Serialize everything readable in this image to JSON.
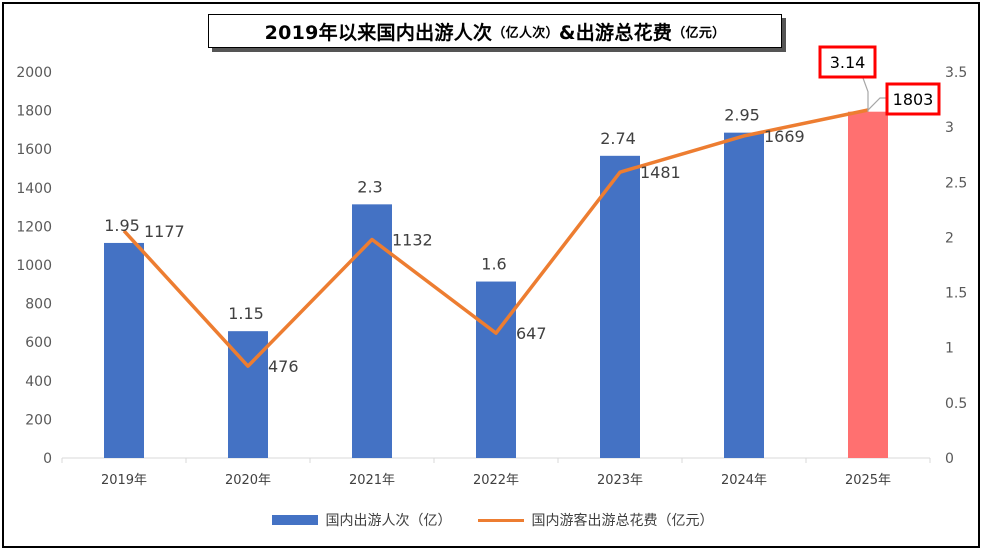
{
  "title": {
    "main": "2019年以来国内出游人次",
    "unit1": "（亿人次）",
    "mid": "&出游总花费",
    "unit2": "（亿元）"
  },
  "chart_data": {
    "type": "bar+line",
    "categories": [
      "2019年",
      "2020年",
      "2021年",
      "2022年",
      "2023年",
      "2024年",
      "2025年"
    ],
    "series": [
      {
        "name": "国内出游人次（亿）",
        "type": "bar",
        "axis": "right",
        "values": [
          1.95,
          1.15,
          2.3,
          1.6,
          2.74,
          2.95,
          3.14
        ],
        "color": "#4472C4",
        "highlight_color": "#FF7070"
      },
      {
        "name": "国内游客出游总花费（亿元）",
        "type": "line",
        "axis": "left",
        "values": [
          1177,
          476,
          1132,
          647,
          1481,
          1669,
          1803
        ],
        "color": "#ED7D31"
      }
    ],
    "left_axis": {
      "ticks": [
        "0",
        "200",
        "400",
        "600",
        "800",
        "1000",
        "1200",
        "1400",
        "1600",
        "1800",
        "2000"
      ],
      "ylim": [
        0,
        2000
      ]
    },
    "right_axis": {
      "ticks": [
        "0",
        "0.5",
        "1",
        "1.5",
        "2",
        "2.5",
        "3",
        "3.5"
      ],
      "ylim": [
        0,
        3.5
      ]
    },
    "bar_labels": [
      "1.95",
      "1.15",
      "2.3",
      "1.6",
      "2.74",
      "2.95",
      "3.14"
    ],
    "line_labels": [
      "1177",
      "476",
      "1132",
      "647",
      "1481",
      "1669",
      "1803"
    ],
    "grid": false,
    "legend": "bottom"
  }
}
